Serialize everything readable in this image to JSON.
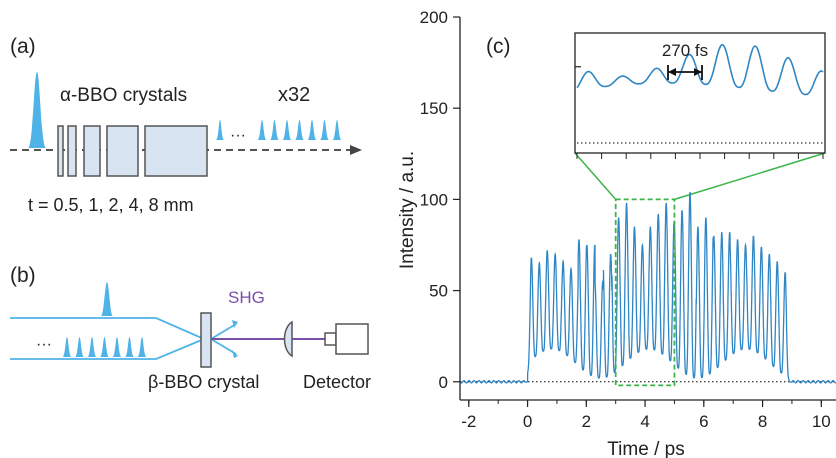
{
  "panel_a": {
    "label": "(a)",
    "crystals_label": "α-BBO crystals",
    "multiplier": "x32",
    "ellipsis": "···",
    "thickness_label": "t = 0.5, 1, 2, 4, 8 mm"
  },
  "panel_b": {
    "label": "(b)",
    "ellipsis": "···",
    "shg_label": "SHG",
    "crystal_label": "β-BBO crystal",
    "detector_label": "Detector"
  },
  "colors": {
    "pulse": "#4fb3e8",
    "crystal_fill": "#d9e4f2",
    "shg": "#7a4fa8",
    "trace": "#2f86c5",
    "zoom_box": "#3cb44b"
  },
  "chart_data": {
    "type": "line",
    "panel_label": "(c)",
    "xlabel": "Time / ps",
    "ylabel": "Intensity / a.u.",
    "xlim": [
      -2.3,
      10.5
    ],
    "ylim": [
      -10,
      200
    ],
    "x_ticks": [
      -2,
      0,
      2,
      4,
      6,
      8,
      10
    ],
    "y_ticks": [
      0,
      50,
      100,
      150,
      200
    ],
    "baseline_dotted": 0,
    "trace": {
      "on_off": [
        0.0,
        8.9
      ],
      "period_ps": 0.27,
      "peaks_approx": [
        68,
        65,
        72,
        70,
        66,
        62,
        78,
        75,
        55,
        70,
        90,
        98,
        85,
        75,
        85,
        92,
        98,
        88,
        94,
        104,
        85,
        90,
        80,
        82,
        78,
        75,
        80,
        74,
        70,
        66,
        60
      ]
    },
    "zoom_window": {
      "x": [
        3.0,
        5.0
      ],
      "y": [
        -2,
        100
      ]
    },
    "inset": {
      "y_ticks": [
        150
      ],
      "annotation": "270 fs",
      "arrow_x": [
        4.85,
        5.95
      ]
    }
  }
}
